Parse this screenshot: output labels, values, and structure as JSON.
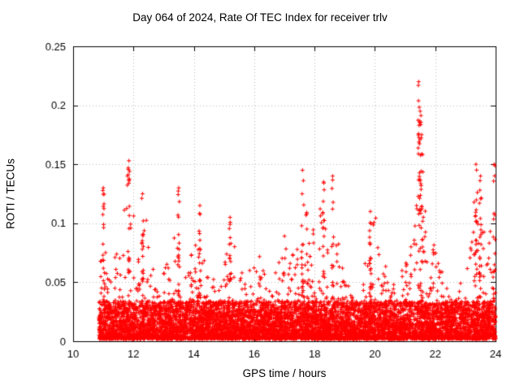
{
  "chart_data": {
    "type": "scatter",
    "title": "Day 064 of 2024, Rate Of TEC Index for receiver trlv",
    "xlabel": "GPS time / hours",
    "ylabel": "ROTI / TECUs",
    "xlim": [
      10,
      24
    ],
    "ylim": [
      0,
      0.25
    ],
    "xticks": [
      10,
      12,
      14,
      16,
      18,
      20,
      22,
      24
    ],
    "xtick_labels": [
      "10",
      "12",
      "14",
      "16",
      "18",
      "20",
      "22",
      "24"
    ],
    "yticks": [
      0,
      0.05,
      0.1,
      0.15,
      0.2,
      0.25
    ],
    "ytick_labels": [
      "0",
      "0.05",
      "0.1",
      "0.15",
      "0.2",
      "0.25"
    ],
    "grid": true,
    "marker": "plus",
    "marker_color": "#ff0000",
    "grid_color": "#b8b8b8",
    "axis_color": "#000000",
    "data_start_hour": 10.85,
    "data_end_hour": 24.0,
    "n_points": 8200,
    "baseline_band_max": 0.035,
    "envelope": [
      [
        10.85,
        0.05
      ],
      [
        11.0,
        0.13
      ],
      [
        11.05,
        0.1
      ],
      [
        11.2,
        0.06
      ],
      [
        11.5,
        0.08
      ],
      [
        11.7,
        0.12
      ],
      [
        11.85,
        0.153
      ],
      [
        12.0,
        0.12
      ],
      [
        12.15,
        0.09
      ],
      [
        12.3,
        0.125
      ],
      [
        12.5,
        0.09
      ],
      [
        12.7,
        0.06
      ],
      [
        12.9,
        0.055
      ],
      [
        13.1,
        0.065
      ],
      [
        13.3,
        0.08
      ],
      [
        13.5,
        0.13
      ],
      [
        13.65,
        0.09
      ],
      [
        13.8,
        0.065
      ],
      [
        14.0,
        0.08
      ],
      [
        14.2,
        0.115
      ],
      [
        14.35,
        0.08
      ],
      [
        14.6,
        0.06
      ],
      [
        14.8,
        0.055
      ],
      [
        15.0,
        0.08
      ],
      [
        15.2,
        0.105
      ],
      [
        15.4,
        0.075
      ],
      [
        15.6,
        0.065
      ],
      [
        15.8,
        0.055
      ],
      [
        16.0,
        0.085
      ],
      [
        16.2,
        0.07
      ],
      [
        16.5,
        0.055
      ],
      [
        16.8,
        0.065
      ],
      [
        17.0,
        0.09
      ],
      [
        17.2,
        0.075
      ],
      [
        17.45,
        0.09
      ],
      [
        17.6,
        0.145
      ],
      [
        17.75,
        0.11
      ],
      [
        17.9,
        0.095
      ],
      [
        18.1,
        0.1
      ],
      [
        18.3,
        0.135
      ],
      [
        18.45,
        0.1
      ],
      [
        18.6,
        0.14
      ],
      [
        18.75,
        0.09
      ],
      [
        19.0,
        0.055
      ],
      [
        19.3,
        0.04
      ],
      [
        19.6,
        0.05
      ],
      [
        19.85,
        0.11
      ],
      [
        20.05,
        0.105
      ],
      [
        20.3,
        0.07
      ],
      [
        20.6,
        0.05
      ],
      [
        20.9,
        0.06
      ],
      [
        21.2,
        0.09
      ],
      [
        21.4,
        0.16
      ],
      [
        21.5,
        0.22
      ],
      [
        21.6,
        0.14
      ],
      [
        21.8,
        0.07
      ],
      [
        22.0,
        0.09
      ],
      [
        22.2,
        0.06
      ],
      [
        22.5,
        0.045
      ],
      [
        22.8,
        0.055
      ],
      [
        23.0,
        0.07
      ],
      [
        23.2,
        0.09
      ],
      [
        23.35,
        0.15
      ],
      [
        23.5,
        0.14
      ],
      [
        23.65,
        0.08
      ],
      [
        23.8,
        0.09
      ],
      [
        23.95,
        0.15
      ],
      [
        24.0,
        0.12
      ]
    ],
    "notable_peaks": [
      [
        11.0,
        0.13
      ],
      [
        11.85,
        0.153
      ],
      [
        12.3,
        0.125
      ],
      [
        13.5,
        0.13
      ],
      [
        14.2,
        0.115
      ],
      [
        15.2,
        0.105
      ],
      [
        17.6,
        0.145
      ],
      [
        18.3,
        0.135
      ],
      [
        18.6,
        0.14
      ],
      [
        19.85,
        0.11
      ],
      [
        21.45,
        0.22
      ],
      [
        21.5,
        0.195
      ],
      [
        21.55,
        0.175
      ],
      [
        23.35,
        0.15
      ],
      [
        23.5,
        0.14
      ],
      [
        23.95,
        0.15
      ]
    ]
  }
}
